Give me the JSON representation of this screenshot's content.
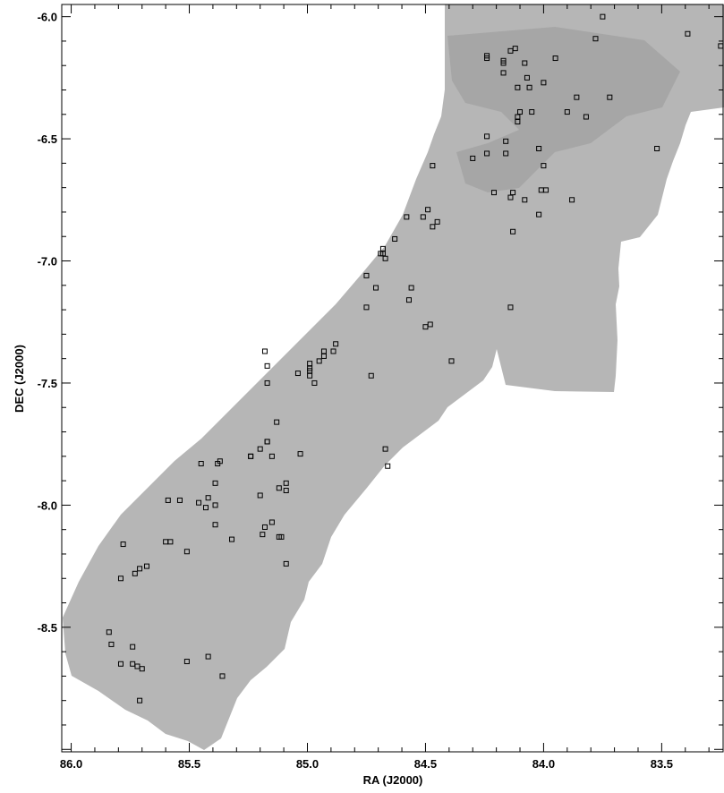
{
  "chart_data": {
    "type": "scatter",
    "title": "",
    "xlabel": "RA (J2000)",
    "ylabel": "DEC (J2000)",
    "xlim": [
      86.04,
      83.24
    ],
    "ylim": [
      -9.01,
      -5.95
    ],
    "x_ticks": [
      {
        "value": 86.0,
        "label": "86.0"
      },
      {
        "value": 85.5,
        "label": "85.5"
      },
      {
        "value": 85.0,
        "label": "85.0"
      },
      {
        "value": 84.5,
        "label": "84.5"
      },
      {
        "value": 84.0,
        "label": "84.0"
      },
      {
        "value": 83.5,
        "label": "83.5"
      }
    ],
    "y_ticks": [
      {
        "value": -6.0,
        "label": "-6.0"
      },
      {
        "value": -6.5,
        "label": "-6.5"
      },
      {
        "value": -7.0,
        "label": "-7.0"
      },
      {
        "value": -7.5,
        "label": "-7.5"
      },
      {
        "value": -8.0,
        "label": "-8.0"
      },
      {
        "value": -8.5,
        "label": "-8.5"
      }
    ],
    "grid": false,
    "legend": "none",
    "background_image": "grayscale survey mosaic (strip from lower-left to upper-right)",
    "marker": "open-square",
    "colors": {
      "mosaic": "#b6b6b6",
      "dark_region": "#a3a3a3",
      "marker": "#000000",
      "axis": "#000000"
    },
    "points": [
      [
        83.75,
        -6.0
      ],
      [
        83.39,
        -6.07
      ],
      [
        83.78,
        -6.09
      ],
      [
        83.25,
        -6.12
      ],
      [
        84.14,
        -6.14
      ],
      [
        84.12,
        -6.13
      ],
      [
        84.24,
        -6.16
      ],
      [
        84.24,
        -6.17
      ],
      [
        84.17,
        -6.18
      ],
      [
        84.17,
        -6.19
      ],
      [
        83.95,
        -6.17
      ],
      [
        84.08,
        -6.19
      ],
      [
        84.17,
        -6.23
      ],
      [
        84.07,
        -6.25
      ],
      [
        84.0,
        -6.27
      ],
      [
        84.11,
        -6.29
      ],
      [
        84.06,
        -6.29
      ],
      [
        83.86,
        -6.33
      ],
      [
        83.72,
        -6.33
      ],
      [
        83.9,
        -6.39
      ],
      [
        84.1,
        -6.39
      ],
      [
        84.05,
        -6.39
      ],
      [
        84.11,
        -6.41
      ],
      [
        84.11,
        -6.43
      ],
      [
        83.82,
        -6.41
      ],
      [
        84.24,
        -6.49
      ],
      [
        84.16,
        -6.51
      ],
      [
        84.02,
        -6.54
      ],
      [
        84.16,
        -6.56
      ],
      [
        84.24,
        -6.56
      ],
      [
        84.3,
        -6.58
      ],
      [
        83.52,
        -6.54
      ],
      [
        84.47,
        -6.61
      ],
      [
        84.0,
        -6.61
      ],
      [
        84.13,
        -6.72
      ],
      [
        84.21,
        -6.72
      ],
      [
        84.14,
        -6.74
      ],
      [
        84.08,
        -6.75
      ],
      [
        84.01,
        -6.71
      ],
      [
        83.99,
        -6.71
      ],
      [
        83.88,
        -6.75
      ],
      [
        84.49,
        -6.79
      ],
      [
        84.51,
        -6.82
      ],
      [
        84.58,
        -6.82
      ],
      [
        84.02,
        -6.81
      ],
      [
        84.45,
        -6.84
      ],
      [
        84.47,
        -6.86
      ],
      [
        84.13,
        -6.88
      ],
      [
        84.63,
        -6.91
      ],
      [
        84.68,
        -6.95
      ],
      [
        84.69,
        -6.97
      ],
      [
        84.68,
        -6.97
      ],
      [
        84.67,
        -6.99
      ],
      [
        84.75,
        -7.06
      ],
      [
        84.71,
        -7.11
      ],
      [
        84.56,
        -7.11
      ],
      [
        84.57,
        -7.16
      ],
      [
        84.75,
        -7.19
      ],
      [
        84.14,
        -7.19
      ],
      [
        84.48,
        -7.26
      ],
      [
        84.5,
        -7.27
      ],
      [
        84.88,
        -7.34
      ],
      [
        84.93,
        -7.37
      ],
      [
        84.89,
        -7.37
      ],
      [
        84.93,
        -7.39
      ],
      [
        84.95,
        -7.41
      ],
      [
        85.18,
        -7.37
      ],
      [
        85.17,
        -7.43
      ],
      [
        84.99,
        -7.42
      ],
      [
        84.99,
        -7.44
      ],
      [
        84.99,
        -7.45
      ],
      [
        85.04,
        -7.46
      ],
      [
        84.99,
        -7.47
      ],
      [
        84.97,
        -7.5
      ],
      [
        85.17,
        -7.5
      ],
      [
        84.73,
        -7.47
      ],
      [
        84.39,
        -7.41
      ],
      [
        85.13,
        -7.66
      ],
      [
        85.17,
        -7.74
      ],
      [
        85.17,
        -7.74
      ],
      [
        85.2,
        -7.77
      ],
      [
        85.24,
        -7.8
      ],
      [
        85.24,
        -7.8
      ],
      [
        85.15,
        -7.8
      ],
      [
        85.03,
        -7.79
      ],
      [
        84.67,
        -7.77
      ],
      [
        85.45,
        -7.83
      ],
      [
        85.37,
        -7.82
      ],
      [
        85.38,
        -7.83
      ],
      [
        84.66,
        -7.84
      ],
      [
        85.39,
        -7.91
      ],
      [
        85.09,
        -7.91
      ],
      [
        85.12,
        -7.93
      ],
      [
        85.09,
        -7.94
      ],
      [
        85.2,
        -7.96
      ],
      [
        85.59,
        -7.98
      ],
      [
        85.54,
        -7.98
      ],
      [
        85.42,
        -7.97
      ],
      [
        85.46,
        -7.99
      ],
      [
        85.43,
        -8.01
      ],
      [
        85.39,
        -8.0
      ],
      [
        85.39,
        -8.08
      ],
      [
        85.18,
        -8.09
      ],
      [
        85.15,
        -8.07
      ],
      [
        85.19,
        -8.12
      ],
      [
        85.11,
        -8.13
      ],
      [
        85.12,
        -8.13
      ],
      [
        85.32,
        -8.14
      ],
      [
        85.6,
        -8.15
      ],
      [
        85.58,
        -8.15
      ],
      [
        85.78,
        -8.16
      ],
      [
        85.51,
        -8.19
      ],
      [
        85.09,
        -8.24
      ],
      [
        85.68,
        -8.25
      ],
      [
        85.71,
        -8.26
      ],
      [
        85.73,
        -8.28
      ],
      [
        85.79,
        -8.3
      ],
      [
        85.84,
        -8.52
      ],
      [
        85.83,
        -8.57
      ],
      [
        85.74,
        -8.58
      ],
      [
        85.42,
        -8.62
      ],
      [
        85.51,
        -8.64
      ],
      [
        85.79,
        -8.65
      ],
      [
        85.74,
        -8.65
      ],
      [
        85.72,
        -8.66
      ],
      [
        85.7,
        -8.67
      ],
      [
        85.36,
        -8.7
      ],
      [
        85.71,
        -8.8
      ]
    ]
  }
}
